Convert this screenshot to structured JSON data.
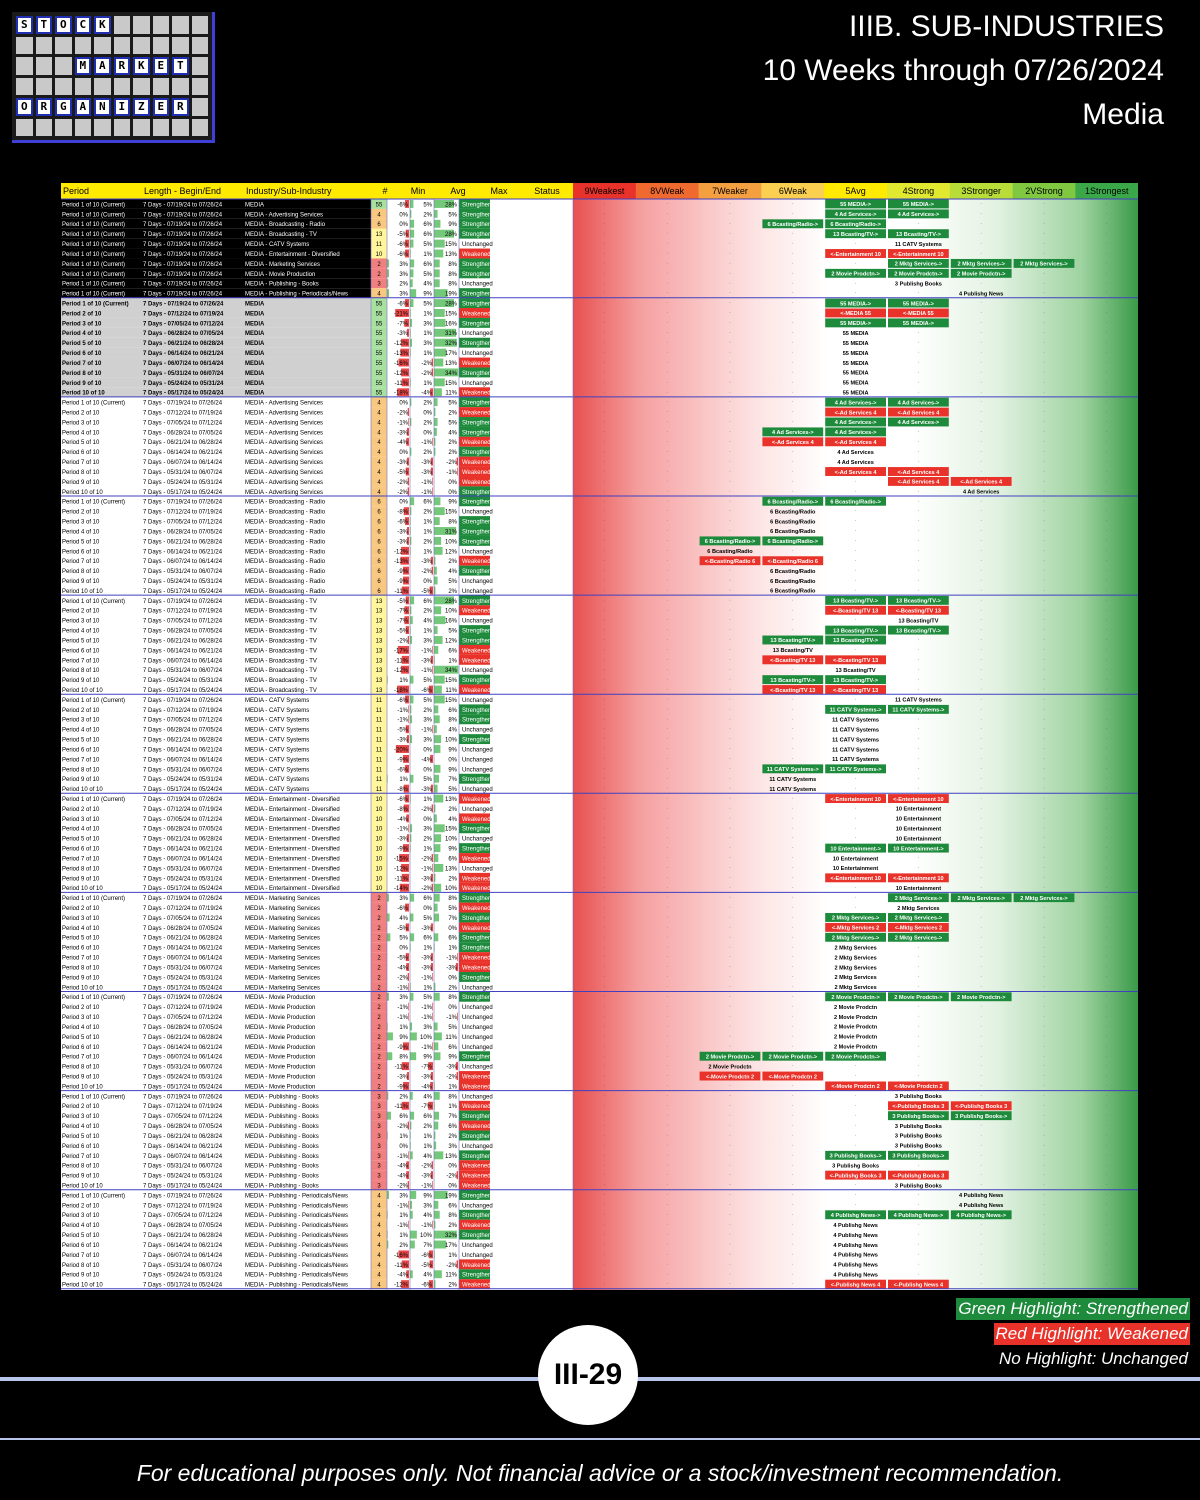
{
  "logo": {
    "rows": [
      [
        "S",
        "T",
        "O",
        "C",
        "K",
        "",
        "",
        "",
        "",
        ""
      ],
      [
        "",
        "",
        "",
        "",
        "",
        "",
        "",
        "",
        "",
        ""
      ],
      [
        "",
        "",
        "",
        "M",
        "A",
        "R",
        "K",
        "E",
        "T",
        ""
      ],
      [
        "",
        "",
        "",
        "",
        "",
        "",
        "",
        "",
        "",
        ""
      ],
      [
        "O",
        "R",
        "G",
        "A",
        "N",
        "I",
        "Z",
        "E",
        "R",
        ""
      ],
      [
        "",
        "",
        "",
        "",
        "",
        "",
        "",
        "",
        "",
        ""
      ]
    ],
    "highlight": [
      [
        0,
        0
      ],
      [
        0,
        1
      ],
      [
        0,
        2
      ],
      [
        0,
        3
      ],
      [
        0,
        4
      ],
      [
        2,
        3
      ],
      [
        2,
        4
      ],
      [
        2,
        5
      ],
      [
        2,
        6
      ],
      [
        2,
        7
      ],
      [
        2,
        8
      ],
      [
        4,
        0
      ],
      [
        4,
        1
      ],
      [
        4,
        2
      ],
      [
        4,
        3
      ],
      [
        4,
        4
      ],
      [
        4,
        5
      ],
      [
        4,
        6
      ],
      [
        4,
        7
      ],
      [
        4,
        8
      ]
    ]
  },
  "title": {
    "line1": "IIIB. SUB-INDUSTRIES",
    "line2": "10 Weeks through 07/26/2024",
    "line3": "Media"
  },
  "headers": [
    "Period",
    "Length - Begin/End",
    "Industry/Sub-Industry",
    "#",
    "Min",
    "Avg",
    "Max",
    "Status",
    "9Weakest",
    "8VWeak",
    "7Weaker",
    "6Weak",
    "5Avg",
    "4Strong",
    "3Stronger",
    "2VStrong",
    "1Strongest"
  ],
  "colors": {
    "strengthened": "#1e8a3c",
    "weakened": "#e8322a",
    "header_yellow": "#ffea00",
    "header_red": "#e8322a",
    "header_green": "#2e9a3c",
    "count_red": "#f08080",
    "count_orange": "#f8c880",
    "count_yellow": "#fff59a",
    "count_green": "#a8e0a0",
    "section_line": "#4040c0"
  },
  "weeks": [
    {
      "p": "Period 1 of 10 (Current)",
      "len": "7 Days - 07/19/24 to 07/26/24"
    },
    {
      "p": "Period 2 of 10",
      "len": "7 Days - 07/12/24 to 07/19/24"
    },
    {
      "p": "Period 3 of 10",
      "len": "7 Days - 07/05/24 to 07/12/24"
    },
    {
      "p": "Period 4 of 10",
      "len": "7 Days - 06/28/24 to 07/05/24"
    },
    {
      "p": "Period 5 of 10",
      "len": "7 Days - 06/21/24 to 06/28/24"
    },
    {
      "p": "Period 6 of 10",
      "len": "7 Days - 06/14/24 to 06/21/24"
    },
    {
      "p": "Period 7 of 10",
      "len": "7 Days - 06/07/24 to 06/14/24"
    },
    {
      "p": "Period 8 of 10",
      "len": "7 Days - 05/31/24 to 06/07/24"
    },
    {
      "p": "Period 9 of 10",
      "len": "7 Days - 05/24/24 to 05/31/24"
    },
    {
      "p": "Period 10 of 10",
      "len": "7 Days - 05/17/24 to 05/24/24"
    }
  ],
  "industries": [
    {
      "name": "MEDIA",
      "count": 55,
      "short": "MEDIA"
    },
    {
      "name": "MEDIA - Advertising Services",
      "count": 4,
      "short": "Ad Services"
    },
    {
      "name": "MEDIA - Broadcasting - Radio",
      "count": 6,
      "short": "Bcasting/Radio"
    },
    {
      "name": "MEDIA - Broadcasting - TV",
      "count": 13,
      "short": "Bcasting/TV"
    },
    {
      "name": "MEDIA - CATV Systems",
      "count": 11,
      "short": "CATV Systems"
    },
    {
      "name": "MEDIA - Entertainment - Diversified",
      "count": 10,
      "short": "Entertainment"
    },
    {
      "name": "MEDIA - Marketing Services",
      "count": 2,
      "short": "Mktg Services"
    },
    {
      "name": "MEDIA - Movie Production",
      "count": 2,
      "short": "Movie Prodctn"
    },
    {
      "name": "MEDIA - Publishing - Books",
      "count": 3,
      "short": "Publishg Books"
    },
    {
      "name": "MEDIA - Publishing - Periodicals/News",
      "count": 4,
      "short": "Publishg News"
    }
  ],
  "current_rows": [
    {
      "min": "-6%",
      "avg": "5%",
      "max": "28%",
      "status": "Strengthened"
    },
    {
      "min": "0%",
      "avg": "2%",
      "max": "5%",
      "status": "Strengthened"
    },
    {
      "min": "0%",
      "avg": "6%",
      "max": "9%",
      "status": "Strengthened"
    },
    {
      "min": "-5%",
      "avg": "6%",
      "max": "28%",
      "status": "Strengthened"
    },
    {
      "min": "-6%",
      "avg": "5%",
      "max": "15%",
      "status": "Unchanged"
    },
    {
      "min": "-6%",
      "avg": "1%",
      "max": "13%",
      "status": "Weakened"
    },
    {
      "min": "3%",
      "avg": "6%",
      "max": "8%",
      "status": "Strengthened"
    },
    {
      "min": "3%",
      "avg": "5%",
      "max": "8%",
      "status": "Strengthened"
    },
    {
      "min": "2%",
      "avg": "4%",
      "max": "8%",
      "status": "Unchanged"
    },
    {
      "min": "3%",
      "avg": "9%",
      "max": "19%",
      "status": "Strengthened"
    }
  ],
  "sections": [
    {
      "min": [
        "-6%",
        "-21%",
        "-7%",
        "-3%",
        "-12%",
        "-13%",
        "-16%",
        "-12%",
        "-11%",
        "-18%"
      ],
      "avg": [
        "5%",
        "1%",
        "3%",
        "1%",
        "3%",
        "1%",
        "-2%",
        "-2%",
        "1%",
        "-4%"
      ],
      "max": [
        "28%",
        "15%",
        "16%",
        "31%",
        "32%",
        "17%",
        "13%",
        "34%",
        "15%",
        "11%"
      ],
      "status": [
        "Strengthened",
        "Weakened",
        "Strengthened",
        "Unchanged",
        "Strengthened",
        "Unchanged",
        "Weakened",
        "Strengthened",
        "Unchanged",
        "Weakened"
      ]
    },
    {
      "min": [
        "0%",
        "-2%",
        "-1%",
        "-3%",
        "-4%",
        "0%",
        "-3%",
        "-5%",
        "-2%",
        "-2%"
      ],
      "avg": [
        "2%",
        "0%",
        "2%",
        "0%",
        "-1%",
        "2%",
        "-3%",
        "-3%",
        "-1%",
        "-1%"
      ],
      "max": [
        "5%",
        "2%",
        "5%",
        "4%",
        "2%",
        "2%",
        "-2%",
        "-1%",
        "0%",
        "0%"
      ],
      "status": [
        "Strengthened",
        "Weakened",
        "Strengthened",
        "Strengthened",
        "Weakened",
        "Strengthened",
        "Weakened",
        "Weakened",
        "Weakened",
        "Strengthened"
      ]
    },
    {
      "min": [
        "0%",
        "-8%",
        "-6%",
        "-3%",
        "-3%",
        "-12%",
        "-13%",
        "-9%",
        "-9%",
        "-11%"
      ],
      "avg": [
        "6%",
        "2%",
        "1%",
        "1%",
        "2%",
        "1%",
        "-3%",
        "-2%",
        "0%",
        "-5%"
      ],
      "max": [
        "9%",
        "15%",
        "8%",
        "31%",
        "10%",
        "12%",
        "2%",
        "4%",
        "5%",
        "2%"
      ],
      "status": [
        "Strengthened",
        "Unchanged",
        "Strengthened",
        "Strengthened",
        "Strengthened",
        "Unchanged",
        "Weakened",
        "Strengthened",
        "Unchanged",
        "Unchanged"
      ]
    },
    {
      "min": [
        "-5%",
        "-7%",
        "-7%",
        "-5%",
        "-2%",
        "-17%",
        "-11%",
        "-12%",
        "1%",
        "-18%"
      ],
      "avg": [
        "6%",
        "2%",
        "4%",
        "1%",
        "3%",
        "-1%",
        "-3%",
        "-1%",
        "5%",
        "-6%"
      ],
      "max": [
        "28%",
        "10%",
        "16%",
        "5%",
        "12%",
        "6%",
        "1%",
        "34%",
        "15%",
        "11%"
      ],
      "status": [
        "Strengthened",
        "Weakened",
        "Unchanged",
        "Strengthened",
        "Strengthened",
        "Weakened",
        "Weakened",
        "Unchanged",
        "Strengthened",
        "Weakened"
      ]
    },
    {
      "min": [
        "-6%",
        "-1%",
        "-1%",
        "-5%",
        "-3%",
        "-20%",
        "-9%",
        "-6%",
        "1%",
        "-8%"
      ],
      "avg": [
        "5%",
        "2%",
        "3%",
        "-1%",
        "3%",
        "0%",
        "-4%",
        "0%",
        "5%",
        "-3%"
      ],
      "max": [
        "15%",
        "6%",
        "8%",
        "4%",
        "10%",
        "9%",
        "0%",
        "9%",
        "7%",
        "5%"
      ],
      "status": [
        "Unchanged",
        "Strengthened",
        "Strengthened",
        "Unchanged",
        "Strengthened",
        "Unchanged",
        "Unchanged",
        "Unchanged",
        "Strengthened",
        "Unchanged"
      ]
    },
    {
      "min": [
        "-6%",
        "-8%",
        "-4%",
        "-1%",
        "-3%",
        "-9%",
        "-15%",
        "-12%",
        "-11%",
        "-14%"
      ],
      "avg": [
        "1%",
        "-2%",
        "0%",
        "3%",
        "2%",
        "1%",
        "-2%",
        "-1%",
        "-3%",
        "-2%"
      ],
      "max": [
        "13%",
        "2%",
        "4%",
        "15%",
        "10%",
        "9%",
        "6%",
        "13%",
        "2%",
        "10%"
      ],
      "status": [
        "Weakened",
        "Unchanged",
        "Weakened",
        "Strengthened",
        "Unchanged",
        "Strengthened",
        "Weakened",
        "Unchanged",
        "Weakened",
        "Weakened"
      ]
    },
    {
      "min": [
        "3%",
        "-6%",
        "4%",
        "-5%",
        "5%",
        "0%",
        "-5%",
        "-4%",
        "-2%",
        "-1%"
      ],
      "avg": [
        "6%",
        "0%",
        "5%",
        "-3%",
        "6%",
        "1%",
        "-3%",
        "-3%",
        "-1%",
        "1%"
      ],
      "max": [
        "8%",
        "5%",
        "7%",
        "0%",
        "6%",
        "1%",
        "-1%",
        "-3%",
        "0%",
        "2%"
      ],
      "status": [
        "Strengthened",
        "Weakened",
        "Strengthened",
        "Weakened",
        "Strengthened",
        "Strengthened",
        "Weakened",
        "Weakened",
        "Strengthened",
        "Unchanged"
      ]
    },
    {
      "min": [
        "3%",
        "-1%",
        "-1%",
        "1%",
        "9%",
        "-9%",
        "8%",
        "-11%",
        "-3%",
        "-9%"
      ],
      "avg": [
        "5%",
        "-1%",
        "-1%",
        "3%",
        "10%",
        "-1%",
        "9%",
        "-7%",
        "-3%",
        "-4%"
      ],
      "max": [
        "8%",
        "0%",
        "-1%",
        "5%",
        "11%",
        "6%",
        "9%",
        "-3%",
        "-2%",
        "1%"
      ],
      "status": [
        "Strengthened",
        "Unchanged",
        "Unchanged",
        "Unchanged",
        "Unchanged",
        "Unchanged",
        "Strengthened",
        "Unchanged",
        "Weakened",
        "Weakened"
      ]
    },
    {
      "min": [
        "2%",
        "-11%",
        "6%",
        "-2%",
        "1%",
        "0%",
        "-1%",
        "-4%",
        "-4%",
        "-2%"
      ],
      "avg": [
        "4%",
        "-7%",
        "6%",
        "2%",
        "1%",
        "1%",
        "4%",
        "-2%",
        "-3%",
        "-1%"
      ],
      "max": [
        "8%",
        "1%",
        "7%",
        "6%",
        "2%",
        "3%",
        "13%",
        "0%",
        "-2%",
        "0%"
      ],
      "status": [
        "Unchanged",
        "Weakened",
        "Strengthened",
        "Weakened",
        "Strengthened",
        "Unchanged",
        "Strengthened",
        "Weakened",
        "Weakened",
        "Weakened"
      ]
    },
    {
      "min": [
        "3%",
        "-1%",
        "1%",
        "-1%",
        "1%",
        "2%",
        "-16%",
        "-11%",
        "-4%",
        "-12%"
      ],
      "avg": [
        "9%",
        "3%",
        "4%",
        "-1%",
        "10%",
        "7%",
        "-6%",
        "-5%",
        "4%",
        "-6%"
      ],
      "max": [
        "19%",
        "6%",
        "8%",
        "2%",
        "32%",
        "17%",
        "1%",
        "-2%",
        "11%",
        "2%"
      ],
      "status": [
        "Strengthened",
        "Unchanged",
        "Strengthened",
        "Weakened",
        "Strengthened",
        "Unchanged",
        "Unchanged",
        "Weakened",
        "Strengthened",
        "Weakened"
      ]
    }
  ],
  "legend": {
    "green": "Green Highlight: Strengthened",
    "red": "Red Highlight: Weakened",
    "none": "No Highlight: Unchanged"
  },
  "page_number": "III-29",
  "footer": "For educational purposes only. Not financial advice or a stock/investment recommendation."
}
